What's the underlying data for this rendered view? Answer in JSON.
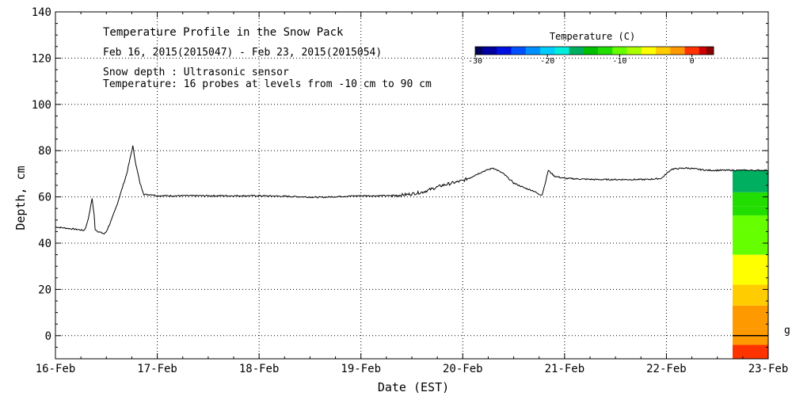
{
  "chart_data": {
    "type": "line",
    "title": "Temperature Profile in the Snow Pack",
    "subtitle": "Feb 16, 2015(2015047) - Feb 23, 2015(2015054)",
    "info_lines": [
      "Snow depth : Ultrasonic sensor",
      "Temperature: 16 probes at levels from -10 cm to 90 cm"
    ],
    "xlabel": "Date (EST)",
    "ylabel": "Depth, cm",
    "xlim": [
      0,
      7
    ],
    "ylim": [
      -10,
      140
    ],
    "x_ticks": [
      0,
      1,
      2,
      3,
      4,
      5,
      6,
      7
    ],
    "x_tick_labels": [
      "16-Feb",
      "17-Feb",
      "18-Feb",
      "19-Feb",
      "20-Feb",
      "21-Feb",
      "22-Feb",
      "23-Feb"
    ],
    "y_ticks": [
      0,
      20,
      40,
      60,
      80,
      100,
      120,
      140
    ],
    "y_tick_labels": [
      "0",
      "20",
      "40",
      "60",
      "80",
      "100",
      "120",
      "140"
    ],
    "grid": true,
    "series": [
      {
        "name": "Snow depth",
        "color": "#000000",
        "points": [
          [
            0.0,
            47
          ],
          [
            0.1,
            46.5
          ],
          [
            0.2,
            46
          ],
          [
            0.28,
            45.5
          ],
          [
            0.3,
            47
          ],
          [
            0.33,
            52
          ],
          [
            0.36,
            59.5
          ],
          [
            0.38,
            52
          ],
          [
            0.39,
            46
          ],
          [
            0.42,
            45
          ],
          [
            0.48,
            44
          ],
          [
            0.5,
            45
          ],
          [
            0.55,
            50
          ],
          [
            0.6,
            56
          ],
          [
            0.65,
            63
          ],
          [
            0.7,
            70
          ],
          [
            0.73,
            76
          ],
          [
            0.76,
            82
          ],
          [
            0.79,
            74
          ],
          [
            0.83,
            66
          ],
          [
            0.87,
            61
          ],
          [
            0.95,
            61
          ],
          [
            1.0,
            60.5
          ],
          [
            1.5,
            60.5
          ],
          [
            2.0,
            60.5
          ],
          [
            2.3,
            60.2
          ],
          [
            2.6,
            59.8
          ],
          [
            2.8,
            60.2
          ],
          [
            3.0,
            60.5
          ],
          [
            3.3,
            60.5
          ],
          [
            3.45,
            61
          ],
          [
            3.6,
            62
          ],
          [
            3.8,
            65
          ],
          [
            4.0,
            67
          ],
          [
            4.1,
            69
          ],
          [
            4.2,
            71
          ],
          [
            4.3,
            72.5
          ],
          [
            4.4,
            70
          ],
          [
            4.5,
            66
          ],
          [
            4.6,
            64
          ],
          [
            4.7,
            62.5
          ],
          [
            4.75,
            61
          ],
          [
            4.78,
            61
          ],
          [
            4.81,
            66
          ],
          [
            4.84,
            71.5
          ],
          [
            4.9,
            69
          ],
          [
            5.0,
            68
          ],
          [
            5.3,
            67.5
          ],
          [
            5.6,
            67.5
          ],
          [
            5.8,
            67.5
          ],
          [
            5.95,
            68
          ],
          [
            6.05,
            72
          ],
          [
            6.2,
            72.5
          ],
          [
            6.4,
            71.5
          ],
          [
            6.6,
            71.5
          ],
          [
            6.8,
            71.5
          ],
          [
            7.0,
            71.5
          ]
        ]
      }
    ],
    "temperature_profile": {
      "x_start": 6.65,
      "x_end": 7.0,
      "bands": [
        {
          "from": -10,
          "to": -4,
          "value": 0
        },
        {
          "from": -4,
          "to": 3,
          "value": -1.5
        },
        {
          "from": 3,
          "to": 13,
          "value": -3
        },
        {
          "from": 13,
          "to": 22,
          "value": -5
        },
        {
          "from": 22,
          "to": 35,
          "value": -7
        },
        {
          "from": 35,
          "to": 46,
          "value": -10
        },
        {
          "from": 46,
          "to": 52,
          "value": -11
        },
        {
          "from": 52,
          "to": 56,
          "value": -12
        },
        {
          "from": 56,
          "to": 62,
          "value": -13
        },
        {
          "from": 62,
          "to": 71.5,
          "value": -16
        }
      ]
    },
    "colorbar": {
      "title": "Temperature (C)",
      "range": [
        -30,
        3
      ],
      "tick_values": [
        -30,
        -20,
        -10,
        0
      ],
      "tick_labels": [
        "-30",
        "-20",
        "-10",
        "0"
      ],
      "colors": [
        "#000055",
        "#0000a0",
        "#0010e0",
        "#0050ff",
        "#0090ff",
        "#00ccff",
        "#00eedd",
        "#00b060",
        "#00c000",
        "#22dd00",
        "#66ff00",
        "#aaff00",
        "#ffff00",
        "#ffcc00",
        "#ff9900",
        "#ff3300",
        "#cc0000",
        "#880000"
      ],
      "cut_points": [
        -29,
        -27,
        -25,
        -23,
        -21,
        -19,
        -17,
        -15,
        -13,
        -11,
        -9,
        -7,
        -5,
        -3,
        -1,
        1,
        2
      ]
    },
    "right_margin_label": "g"
  }
}
